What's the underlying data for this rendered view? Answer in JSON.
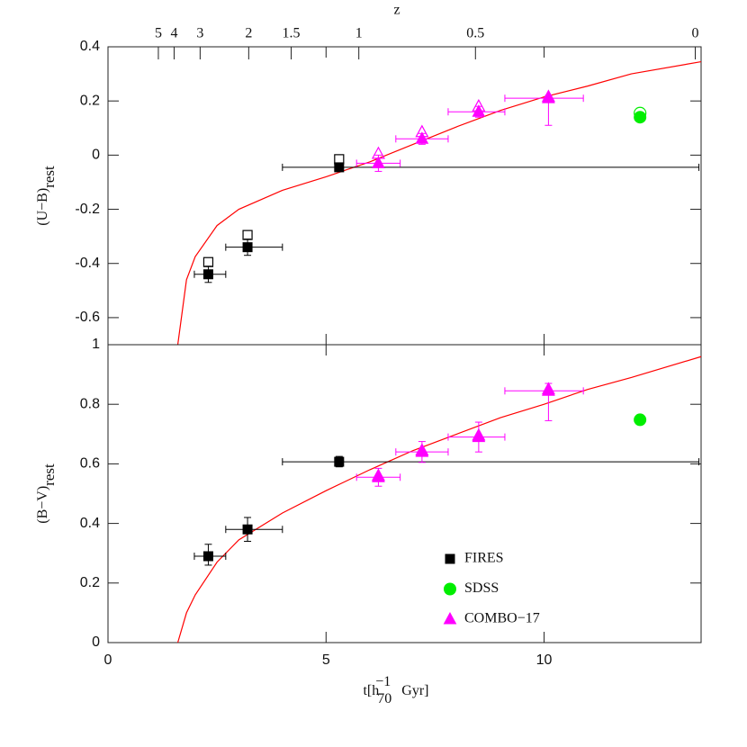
{
  "chart_data": [
    {
      "type": "scatter",
      "ylabel": "(U−B)",
      "ylabel_subscript": "rest",
      "x2label": "z",
      "x2ticks": [
        5,
        4,
        3,
        2,
        1.5,
        1,
        0.5,
        0
      ],
      "xlim": [
        0,
        13.6
      ],
      "ylim": [
        -0.7,
        0.4
      ],
      "yticks": [
        -0.6,
        -0.4,
        -0.2,
        0,
        0.2,
        0.4
      ],
      "series": [
        {
          "marker": "square",
          "color": "#000000",
          "x": [
            2.3,
            3.2,
            5.3
          ],
          "values": [
            -0.44,
            -0.34,
            -0.045
          ],
          "y_low": [
            -0.47,
            -0.37,
            -0.06
          ],
          "y_high": [
            -0.41,
            -0.31,
            -0.03
          ],
          "x_low": [
            1.98,
            2.7,
            4.0
          ],
          "x_high": [
            2.7,
            4.0,
            13.55
          ],
          "open_values": [
            -0.395,
            -0.295,
            -0.015
          ]
        },
        {
          "marker": "circle",
          "color": "#00ee00",
          "x": [
            12.2
          ],
          "values": [
            0.14
          ],
          "y_low": [
            0.13
          ],
          "y_high": [
            0.15
          ],
          "open_values": [
            0.155
          ]
        },
        {
          "marker": "triangle",
          "color": "#ff00ff",
          "x": [
            6.2,
            7.2,
            8.5,
            10.1
          ],
          "values": [
            -0.03,
            0.06,
            0.16,
            0.21
          ],
          "y_low": [
            -0.06,
            0.04,
            0.14,
            0.11
          ],
          "y_high": [
            0.0,
            0.08,
            0.18,
            0.22
          ],
          "x_low": [
            5.7,
            6.6,
            7.8,
            9.1
          ],
          "x_high": [
            6.7,
            7.8,
            9.1,
            10.9
          ],
          "open_values": [
            0.005,
            0.085,
            0.18,
            0.215
          ]
        }
      ],
      "model": {
        "color": "#ff0000",
        "x": [
          1.6,
          1.8,
          2.0,
          2.5,
          3,
          4,
          5,
          6,
          7,
          8,
          9,
          10,
          11,
          12,
          13.6
        ],
        "values": [
          -0.7,
          -0.46,
          -0.375,
          -0.26,
          -0.2,
          -0.13,
          -0.08,
          -0.025,
          0.04,
          0.105,
          0.165,
          0.215,
          0.255,
          0.3,
          0.345
        ]
      }
    },
    {
      "type": "scatter",
      "ylabel": "(B−V)",
      "ylabel_subscript": "rest",
      "xlabel": {
        "text": "t[h",
        "sub": "70",
        "sup": "−1",
        "text2": "Gyr]"
      },
      "xlim": [
        0,
        13.6
      ],
      "xticks": [
        0,
        5,
        10
      ],
      "ylim": [
        0,
        1
      ],
      "yticks": [
        0,
        0.2,
        0.4,
        0.6,
        0.8,
        1
      ],
      "legend": "lower right",
      "series": [
        {
          "name": "FIRES",
          "marker": "square",
          "color": "#000000",
          "x": [
            2.3,
            3.2,
            5.3
          ],
          "values": [
            0.29,
            0.38,
            0.607
          ],
          "y_low": [
            0.26,
            0.34,
            0.59
          ],
          "y_high": [
            0.33,
            0.42,
            0.625
          ],
          "x_low": [
            1.98,
            2.7,
            4.0
          ],
          "x_high": [
            2.7,
            4.0,
            13.55
          ]
        },
        {
          "name": "SDSS",
          "marker": "circle",
          "color": "#00ee00",
          "x": [
            12.2
          ],
          "values": [
            0.748
          ],
          "y_low": [
            0.733
          ],
          "y_high": [
            0.763
          ]
        },
        {
          "name": "COMBO−17",
          "marker": "triangle",
          "color": "#ff00ff",
          "x": [
            6.2,
            7.2,
            8.5,
            10.1
          ],
          "values": [
            0.555,
            0.64,
            0.69,
            0.845
          ],
          "y_low": [
            0.525,
            0.605,
            0.64,
            0.745
          ],
          "y_high": [
            0.585,
            0.675,
            0.74,
            0.87
          ],
          "x_low": [
            5.7,
            6.6,
            7.8,
            9.1
          ],
          "x_high": [
            6.7,
            7.8,
            9.1,
            10.9
          ],
          "open_values": [
            0.56,
            0.645,
            0.695,
            0.85
          ]
        }
      ],
      "model": {
        "color": "#ff0000",
        "x": [
          1.6,
          1.8,
          2.0,
          2.5,
          3,
          4,
          5,
          6,
          7,
          8,
          9,
          10,
          11,
          12,
          13.6
        ],
        "values": [
          0,
          0.1,
          0.16,
          0.27,
          0.345,
          0.435,
          0.51,
          0.58,
          0.645,
          0.7,
          0.755,
          0.8,
          0.85,
          0.89,
          0.96
        ]
      }
    }
  ]
}
